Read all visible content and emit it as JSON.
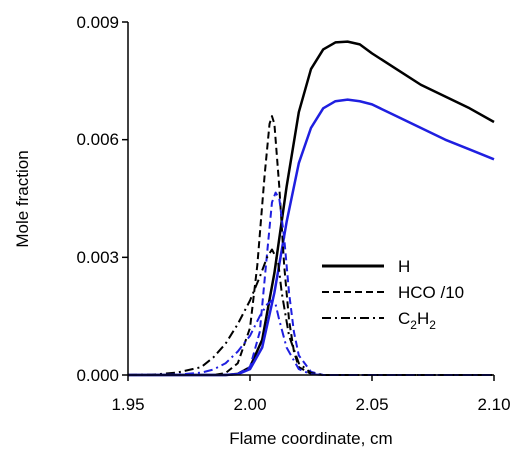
{
  "chart_data": {
    "type": "line",
    "xlabel": "Flame coordinate, cm",
    "ylabel": "Mole fraction",
    "xlim": [
      1.95,
      2.1
    ],
    "ylim": [
      0.0,
      0.009
    ],
    "x_ticks": [
      "1.95",
      "2.00",
      "2.05",
      "2.10"
    ],
    "y_ticks": [
      "0.000",
      "0.003",
      "0.006",
      "0.009"
    ],
    "grid": false,
    "legend": {
      "placement": "center-right",
      "entries": [
        {
          "label": "H",
          "style": "solid"
        },
        {
          "label": "HCO /10",
          "style": "dashed"
        },
        {
          "label": "C",
          "sub1": "2",
          "mid": "H",
          "sub2": "2",
          "style": "dashdot"
        }
      ]
    },
    "colors": {
      "black": "#000000",
      "blue": "#1f1fe0"
    },
    "series": [
      {
        "legend_index": 0,
        "color": "black",
        "style": "solid",
        "x": [
          1.95,
          1.99,
          1.995,
          2.0,
          2.005,
          2.01,
          2.015,
          2.02,
          2.025,
          2.03,
          2.035,
          2.04,
          2.045,
          2.05,
          2.06,
          2.07,
          2.08,
          2.09,
          2.1
        ],
        "y": [
          0.0,
          0.0,
          3e-05,
          0.0002,
          0.0009,
          0.0026,
          0.0048,
          0.0067,
          0.0078,
          0.0083,
          0.00848,
          0.0085,
          0.00843,
          0.0082,
          0.0078,
          0.0074,
          0.0071,
          0.0068,
          0.00645
        ]
      },
      {
        "legend_index": 0,
        "color": "blue",
        "style": "solid",
        "x": [
          1.95,
          1.99,
          1.995,
          2.0,
          2.005,
          2.01,
          2.015,
          2.02,
          2.025,
          2.03,
          2.035,
          2.04,
          2.045,
          2.05,
          2.06,
          2.07,
          2.08,
          2.09,
          2.1
        ],
        "y": [
          0.0,
          0.0,
          2e-05,
          0.00015,
          0.0007,
          0.0021,
          0.0039,
          0.0054,
          0.0063,
          0.0068,
          0.00698,
          0.00702,
          0.00698,
          0.0069,
          0.0066,
          0.0063,
          0.006,
          0.00575,
          0.0055
        ]
      },
      {
        "legend_index": 1,
        "color": "black",
        "style": "dashed",
        "x": [
          1.95,
          1.985,
          1.99,
          1.995,
          2.0,
          2.003,
          2.006,
          2.008,
          2.009,
          2.01,
          2.012,
          2.014,
          2.016,
          2.018,
          2.02,
          2.025,
          2.03,
          2.04,
          2.1
        ],
        "y": [
          0.0,
          0.0,
          5e-05,
          0.0003,
          0.0012,
          0.0028,
          0.0051,
          0.0064,
          0.0066,
          0.0064,
          0.0048,
          0.0028,
          0.0014,
          0.0006,
          0.0002,
          3e-05,
          0.0,
          0.0,
          0.0
        ]
      },
      {
        "legend_index": 1,
        "color": "blue",
        "style": "dashed",
        "x": [
          1.95,
          1.99,
          1.995,
          2.0,
          2.004,
          2.007,
          2.009,
          2.0105,
          2.012,
          2.014,
          2.016,
          2.018,
          2.02,
          2.025,
          2.03,
          2.04,
          2.1
        ],
        "y": [
          0.0,
          0.0,
          3e-05,
          0.0002,
          0.0011,
          0.0031,
          0.0044,
          0.00465,
          0.0045,
          0.0035,
          0.0021,
          0.0011,
          0.0005,
          8e-05,
          0.0,
          0.0,
          0.0
        ]
      },
      {
        "legend_index": 2,
        "color": "black",
        "style": "dashdot",
        "x": [
          1.95,
          1.96,
          1.97,
          1.98,
          1.985,
          1.99,
          1.995,
          2.0,
          2.004,
          2.007,
          2.009,
          2.0115,
          2.013,
          2.016,
          2.02,
          2.025,
          2.03,
          2.04,
          2.1
        ],
        "y": [
          0.0,
          1e-05,
          6e-05,
          0.0002,
          0.00045,
          0.0008,
          0.0013,
          0.0019,
          0.0025,
          0.003,
          0.0032,
          0.0029,
          0.0021,
          0.001,
          0.0003,
          5e-05,
          0.0,
          0.0,
          0.0
        ]
      },
      {
        "legend_index": 2,
        "color": "blue",
        "style": "dashdot",
        "x": [
          1.95,
          1.97,
          1.98,
          1.985,
          1.99,
          1.995,
          2.0,
          2.004,
          2.007,
          2.009,
          2.0105,
          2.012,
          2.015,
          2.02,
          2.025,
          2.03,
          2.04,
          2.1
        ],
        "y": [
          0.0,
          1e-05,
          6e-05,
          0.00014,
          0.0003,
          0.0006,
          0.001,
          0.0015,
          0.0018,
          0.0019,
          0.0018,
          0.0014,
          0.0007,
          0.00015,
          2e-05,
          0.0,
          0.0,
          0.0
        ]
      }
    ]
  }
}
